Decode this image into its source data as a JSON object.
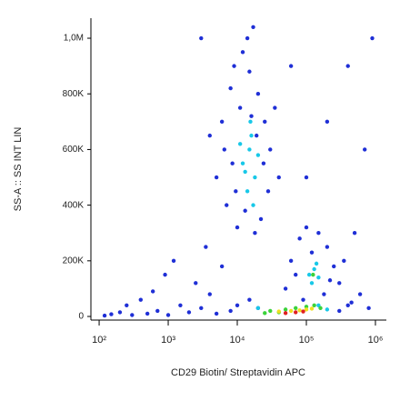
{
  "chart_data": {
    "type": "scatter",
    "x_label": "CD29 Biotin/ Streptavidin APC",
    "y_label": "SS-A :: SS INT LIN",
    "x_scale": "log",
    "xlim": [
      76,
      1440000
    ],
    "xticks": [
      {
        "value": 100,
        "label": "10²"
      },
      {
        "value": 1000,
        "label": "10³"
      },
      {
        "value": 10000,
        "label": "10⁴"
      },
      {
        "value": 100000,
        "label": "10⁵"
      },
      {
        "value": 1000000,
        "label": "10⁶"
      }
    ],
    "ylim": [
      -13000,
      1072000
    ],
    "yticks": [
      0,
      {
        "value": 200000,
        "label": "200K"
      },
      {
        "value": 400000,
        "label": "400K"
      },
      {
        "value": 600000,
        "label": "600K"
      },
      {
        "value": 800000,
        "label": "800K"
      },
      {
        "value": 1000000,
        "label": "1,0M"
      }
    ],
    "series": [
      {
        "color": "#1f2fd6",
        "x": [
          6000,
          8000,
          9000,
          12000,
          15000,
          20000,
          25000,
          30000,
          28000,
          22000,
          18000,
          10000,
          7000,
          5000,
          6500,
          11000,
          16000,
          24000,
          9500,
          13000,
          19000,
          8500,
          14000,
          17000,
          35000,
          40000,
          4000,
          50000,
          60000,
          80000,
          100000,
          150000,
          200000,
          250000,
          300000,
          180000,
          90000,
          70000,
          120000,
          220000,
          350000,
          10000,
          15000,
          20000,
          8000,
          5000,
          3000,
          2000,
          1500,
          1000,
          700,
          500,
          300,
          200,
          150,
          120,
          400,
          600,
          900,
          1200,
          2500,
          4000,
          6000,
          3500,
          250,
          450000,
          600000,
          800000,
          500000,
          700000,
          400000,
          900000,
          200000,
          100000,
          60000,
          3000,
          400000,
          300000
        ],
        "values": [
          700000,
          820000,
          900000,
          950000,
          880000,
          800000,
          700000,
          600000,
          450000,
          350000,
          300000,
          320000,
          400000,
          500000,
          600000,
          750000,
          720000,
          550000,
          450000,
          380000,
          650000,
          550000,
          1000000,
          1040000,
          750000,
          500000,
          650000,
          100000,
          200000,
          280000,
          320000,
          300000,
          250000,
          180000,
          120000,
          80000,
          60000,
          150000,
          230000,
          130000,
          200000,
          40000,
          60000,
          30000,
          20000,
          10000,
          30000,
          15000,
          40000,
          5000,
          20000,
          10000,
          5000,
          15000,
          8000,
          3000,
          60000,
          90000,
          150000,
          200000,
          120000,
          80000,
          180000,
          250000,
          40000,
          50000,
          80000,
          30000,
          300000,
          600000,
          900000,
          1000000,
          700000,
          500000,
          900000,
          1000000,
          40000,
          20000
        ]
      },
      {
        "color": "#18c8e8",
        "x": [
          12000,
          15000,
          18000,
          14000,
          16000,
          11000,
          20000,
          13000,
          17000,
          15500,
          110000,
          130000,
          150000,
          120000,
          140000,
          20000,
          150000,
          200000
        ],
        "values": [
          550000,
          600000,
          500000,
          450000,
          650000,
          620000,
          580000,
          520000,
          400000,
          700000,
          150000,
          170000,
          140000,
          120000,
          190000,
          30000,
          40000,
          25000
        ]
      },
      {
        "color": "#3ad23a",
        "x": [
          30000,
          50000,
          70000,
          100000,
          130000,
          40000,
          160000,
          25000,
          125000
        ],
        "values": [
          20000,
          25000,
          30000,
          35000,
          40000,
          15000,
          30000,
          12000,
          150000
        ]
      },
      {
        "color": "#f0e020",
        "x": [
          40000,
          60000,
          80000,
          100000,
          120000
        ],
        "values": [
          18000,
          20000,
          22000,
          25000,
          28000
        ]
      },
      {
        "color": "#e02020",
        "x": [
          50000,
          70000,
          90000
        ],
        "values": [
          12000,
          15000,
          18000
        ]
      }
    ]
  }
}
